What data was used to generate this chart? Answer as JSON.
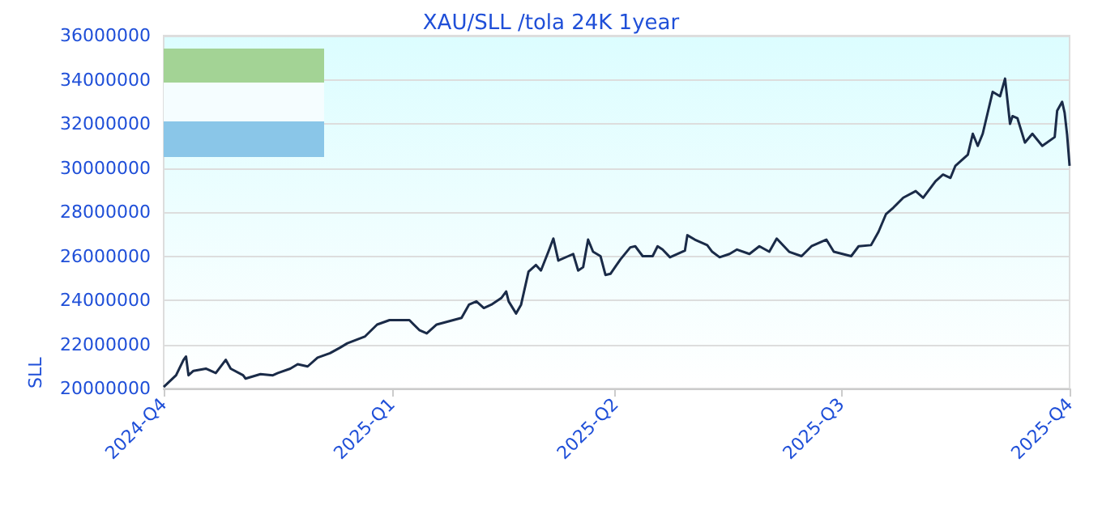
{
  "chart_data": {
    "type": "line",
    "title": "XAU/SLL /tola 24K 1year",
    "ylabel": "SLL",
    "x": [
      "2024-10-01",
      "2024-10-06",
      "2024-10-09",
      "2024-10-10",
      "2024-10-11",
      "2024-10-13",
      "2024-10-18",
      "2024-10-22",
      "2024-10-26",
      "2024-10-28",
      "2024-11-02",
      "2024-11-03",
      "2024-11-09",
      "2024-11-14",
      "2024-11-16",
      "2024-11-21",
      "2024-11-24",
      "2024-11-28",
      "2024-12-02",
      "2024-12-07",
      "2024-12-11",
      "2024-12-14",
      "2024-12-21",
      "2024-12-26",
      "2024-12-31",
      "2025-01-08",
      "2025-01-12",
      "2025-01-15",
      "2025-01-19",
      "2025-01-29",
      "2025-02-01",
      "2025-02-04",
      "2025-02-07",
      "2025-02-10",
      "2025-02-14",
      "2025-02-16",
      "2025-02-17",
      "2025-02-20",
      "2025-02-22",
      "2025-02-25",
      "2025-02-28",
      "2025-03-02",
      "2025-03-05",
      "2025-03-07",
      "2025-03-09",
      "2025-03-13",
      "2025-03-15",
      "2025-03-17",
      "2025-03-19",
      "2025-03-21",
      "2025-03-23",
      "2025-03-26",
      "2025-03-28",
      "2025-03-30",
      "2025-04-03",
      "2025-04-07",
      "2025-04-09",
      "2025-04-12",
      "2025-04-16",
      "2025-04-18",
      "2025-04-20",
      "2025-04-23",
      "2025-04-29",
      "2025-04-30",
      "2025-05-03",
      "2025-05-08",
      "2025-05-10",
      "2025-05-13",
      "2025-05-17",
      "2025-05-20",
      "2025-05-25",
      "2025-05-29",
      "2025-06-02",
      "2025-06-05",
      "2025-06-10",
      "2025-06-15",
      "2025-06-19",
      "2025-06-25",
      "2025-06-28",
      "2025-07-05",
      "2025-07-08",
      "2025-07-13",
      "2025-07-16",
      "2025-07-19",
      "2025-07-22",
      "2025-07-26",
      "2025-07-31",
      "2025-08-03",
      "2025-08-08",
      "2025-08-11",
      "2025-08-14",
      "2025-08-16",
      "2025-08-21",
      "2025-08-23",
      "2025-08-25",
      "2025-08-27",
      "2025-08-31",
      "2025-09-03",
      "2025-09-05",
      "2025-09-07",
      "2025-09-08",
      "2025-09-10",
      "2025-09-13",
      "2025-09-16",
      "2025-09-20",
      "2025-09-25",
      "2025-09-26",
      "2025-09-28",
      "2025-09-29",
      "2025-09-30",
      "2025-10-01"
    ],
    "series": [
      {
        "color": "#1a2b48",
        "values": [
          20070000,
          20600000,
          21300000,
          21450000,
          20600000,
          20800000,
          20900000,
          20700000,
          21300000,
          20900000,
          20600000,
          20450000,
          20650000,
          20600000,
          20700000,
          20900000,
          21100000,
          21000000,
          21400000,
          21600000,
          21850000,
          22050000,
          22350000,
          22900000,
          23100000,
          23100000,
          22650000,
          22500000,
          22900000,
          23200000,
          23800000,
          23950000,
          23650000,
          23800000,
          24100000,
          24400000,
          23950000,
          23400000,
          23800000,
          25300000,
          25600000,
          25350000,
          26200000,
          26800000,
          25800000,
          26000000,
          26100000,
          25350000,
          25500000,
          26750000,
          26200000,
          26000000,
          25150000,
          25200000,
          25850000,
          26400000,
          26450000,
          26000000,
          26000000,
          26450000,
          26300000,
          25950000,
          26250000,
          26950000,
          26750000,
          26500000,
          26200000,
          25950000,
          26100000,
          26300000,
          26100000,
          26450000,
          26200000,
          26800000,
          26200000,
          26000000,
          26450000,
          26750000,
          26200000,
          26000000,
          26450000,
          26500000,
          27100000,
          27900000,
          28200000,
          28650000,
          28950000,
          28650000,
          29400000,
          29700000,
          29550000,
          30100000,
          30600000,
          31550000,
          31000000,
          31550000,
          33450000,
          33250000,
          34050000,
          32000000,
          32350000,
          32250000,
          31150000,
          31550000,
          31000000,
          31400000,
          32600000,
          33000000,
          32500000,
          31500000,
          30100000
        ]
      }
    ],
    "xlim": [
      "2024-10-01",
      "2025-10-01"
    ],
    "xticks": [
      {
        "value": "2024-10-01",
        "label": "2024-Q4"
      },
      {
        "value": "2025-01-01",
        "label": "2025-Q1"
      },
      {
        "value": "2025-04-01",
        "label": "2025-Q2"
      },
      {
        "value": "2025-07-01",
        "label": "2025-Q3"
      },
      {
        "value": "2025-10-01",
        "label": "2025-Q4"
      }
    ],
    "ylim": [
      20000000,
      36000000
    ],
    "yticks": [
      20000000,
      22000000,
      24000000,
      26000000,
      28000000,
      30000000,
      32000000,
      34000000,
      36000000
    ],
    "grid": "y",
    "marker": "none",
    "line_style": "solid"
  }
}
